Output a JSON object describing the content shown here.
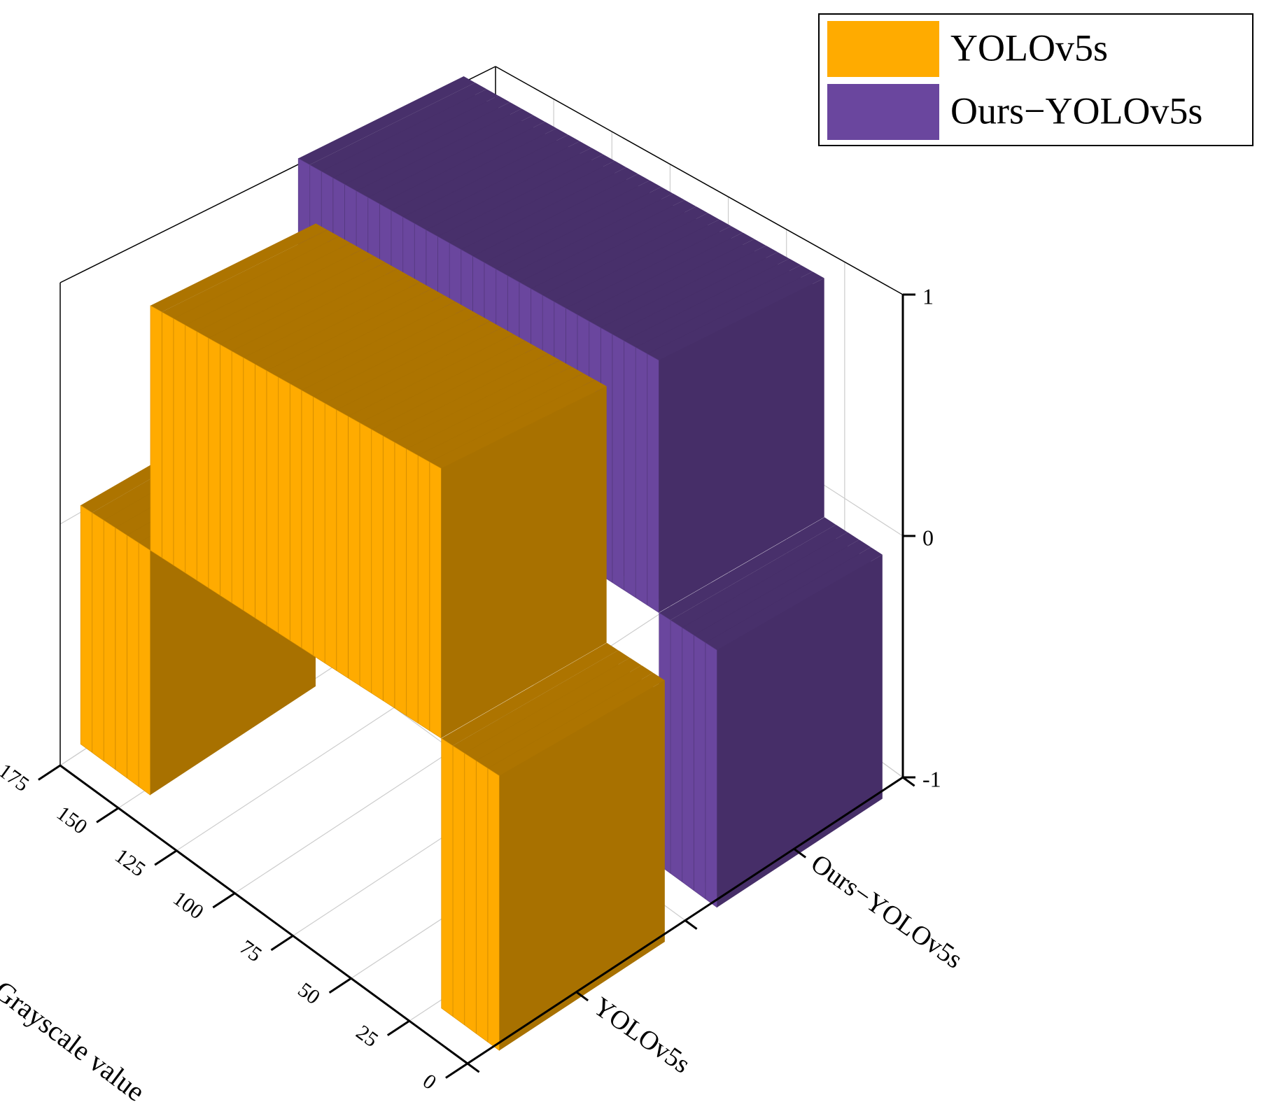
{
  "chart_data": {
    "type": "bar3d",
    "x_label": "Grayscale value",
    "x": [
      0,
      5,
      10,
      15,
      20,
      25,
      30,
      35,
      40,
      45,
      50,
      55,
      60,
      65,
      70,
      75,
      80,
      85,
      90,
      95,
      100,
      105,
      110,
      115,
      120,
      125,
      130,
      135,
      140,
      145,
      150,
      155,
      160,
      165,
      170,
      175
    ],
    "xlim": [
      0,
      175
    ],
    "xticks": [
      0,
      25,
      50,
      75,
      100,
      125,
      150,
      175
    ],
    "categories": [
      "YOLOv5s",
      "Ours−YOLOv5s"
    ],
    "zlim": [
      -1,
      1
    ],
    "zticks": [
      -1,
      0,
      1
    ],
    "grid": true,
    "legend": "upper right",
    "series": [
      {
        "name": "YOLOv5s",
        "color": "#ffab00",
        "values": [
          -1,
          -1,
          -1,
          -1,
          -1,
          1,
          1,
          1,
          1,
          1,
          1,
          1,
          1,
          1,
          1,
          1,
          1,
          1,
          1,
          1,
          1,
          1,
          1,
          1,
          1,
          1,
          1,
          1,
          1,
          1,
          -1,
          -1,
          -1,
          -1,
          -1,
          -1
        ]
      },
      {
        "name": "Ours−YOLOv5s",
        "color": "#6a469e",
        "values": [
          -1,
          -1,
          -1,
          -1,
          -1,
          1,
          1,
          1,
          1,
          1,
          1,
          1,
          1,
          1,
          1,
          1,
          1,
          1,
          1,
          1,
          1,
          1,
          1,
          1,
          1,
          1,
          1,
          1,
          1,
          1,
          1,
          1,
          1,
          1,
          1,
          1
        ]
      }
    ]
  }
}
